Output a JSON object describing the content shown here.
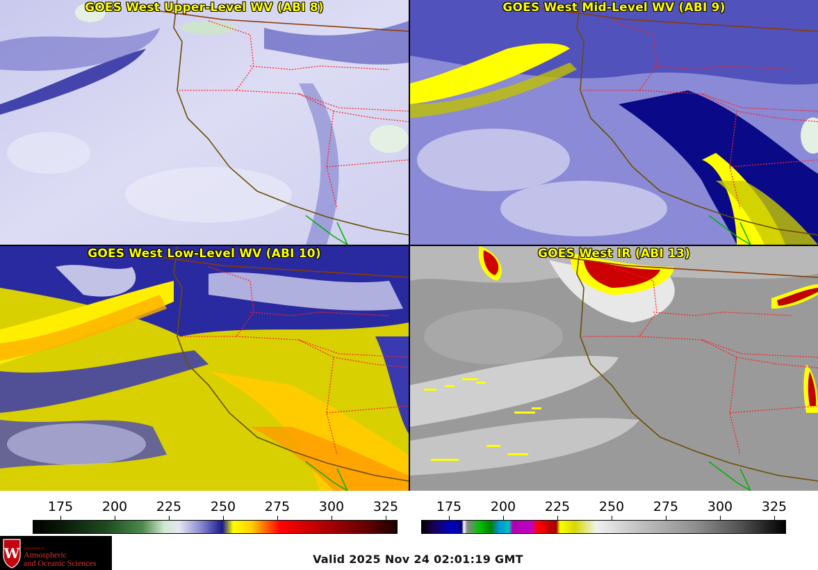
{
  "panels": {
    "upper": {
      "title": "GOES West Upper-Level WV (ABI 8)"
    },
    "mid": {
      "title": "GOES West Mid-Level WV (ABI 9)"
    },
    "low": {
      "title": "GOES West Low-Level WV (ABI 10)"
    },
    "ir": {
      "title": "GOES West IR (ABI 13)"
    }
  },
  "colorbars": {
    "wv": {
      "ticks": [
        "175",
        "200",
        "225",
        "250",
        "275",
        "300",
        "325"
      ]
    },
    "ir": {
      "ticks": [
        "175",
        "200",
        "225",
        "250",
        "275",
        "300",
        "325"
      ]
    }
  },
  "logo": {
    "line1": "Department of",
    "line2": "Atmospheric",
    "line3": "and Oceanic Sciences",
    "crest_letter": "W"
  },
  "valid_time": "Valid 2025 Nov 24 02:01:19 GMT",
  "colors": {
    "title_text": "#ffff00",
    "state_borders": "#ff2020",
    "coastline": "#6a4e00",
    "mexico_border": "#00b000"
  }
}
